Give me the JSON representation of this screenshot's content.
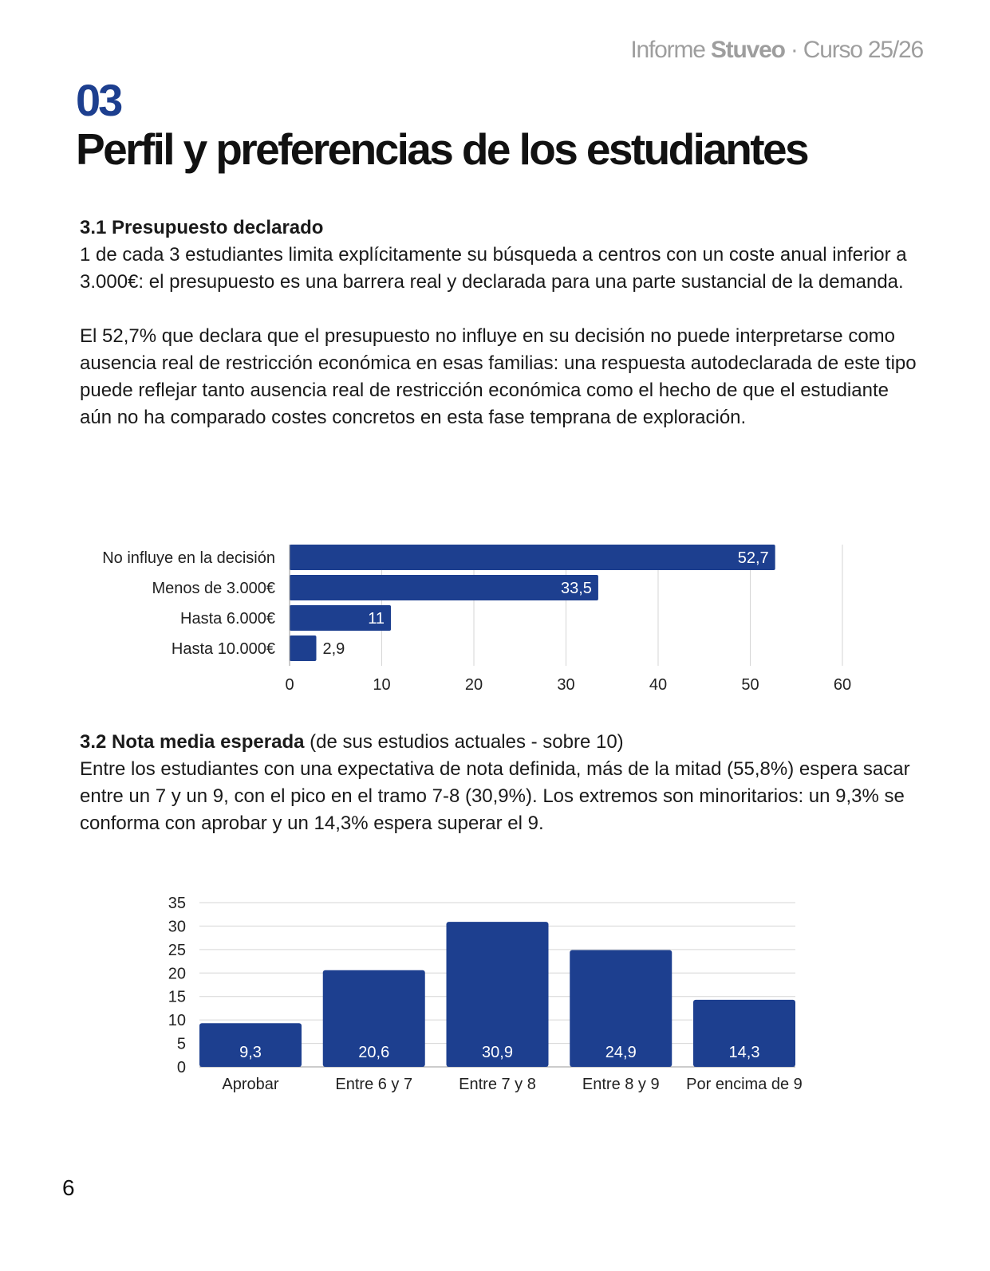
{
  "header": {
    "prefix": "Informe ",
    "brand": "Stuveo",
    "suffix": " · Curso 25/26"
  },
  "section": {
    "number": "03",
    "title": "Perfil y preferencias de los estudiantes"
  },
  "s31": {
    "heading": "3.1 Presupuesto declarado",
    "para1": "1 de cada 3 estudiantes limita explícitamente su búsqueda a centros con un coste anual inferior a 3.000€: el presupuesto es una barrera real y declarada para una parte sustancial de la demanda.",
    "para2": "El 52,7% que declara que el presupuesto no influye en su decisión no puede interpretarse como ausencia real de restricción económica en esas familias: una respuesta autodeclarada de este tipo puede reflejar tanto ausencia real de restricción económica como el hecho de que el estudiante aún no ha comparado costes concretos en esta fase temprana de exploración."
  },
  "s32": {
    "heading": "3.2 Nota media esperada",
    "heading_note": " (de sus estudios actuales - sobre 10)",
    "para": "Entre los estudiantes con una expectativa de nota definida, más de la mitad (55,8%) espera sacar entre un 7 y un 9, con el pico en el tramo 7-8 (30,9%). Los extremos son minoritarios: un 9,3% se conforma con aprobar y un 14,3% espera superar el 9."
  },
  "chart_data": [
    {
      "type": "bar",
      "orientation": "horizontal",
      "categories": [
        "No influye en la decisión",
        "Menos de 3.000€",
        "Hasta 6.000€",
        "Hasta 10.000€"
      ],
      "values": [
        52.7,
        33.5,
        11,
        2.9
      ],
      "value_labels": [
        "52,7",
        "33,5",
        "11",
        "2,9"
      ],
      "xlim": [
        0,
        60
      ],
      "xticks": [
        "0",
        "10",
        "20",
        "30",
        "40",
        "50",
        "60"
      ],
      "grid": true,
      "color": "#1d3f8f"
    },
    {
      "type": "bar",
      "orientation": "vertical",
      "categories": [
        "Aprobar",
        "Entre 6 y 7",
        "Entre 7 y 8",
        "Entre 8 y 9",
        "Por encima de 9"
      ],
      "values": [
        9.3,
        20.6,
        30.9,
        24.9,
        14.3
      ],
      "value_labels": [
        "9,3",
        "20,6",
        "30,9",
        "24,9",
        "14,3"
      ],
      "ylim": [
        0,
        35
      ],
      "yticks": [
        "0",
        "5",
        "10",
        "15",
        "20",
        "25",
        "30",
        "35"
      ],
      "grid": true,
      "color": "#1d3f8f"
    }
  ],
  "page_number": "6"
}
